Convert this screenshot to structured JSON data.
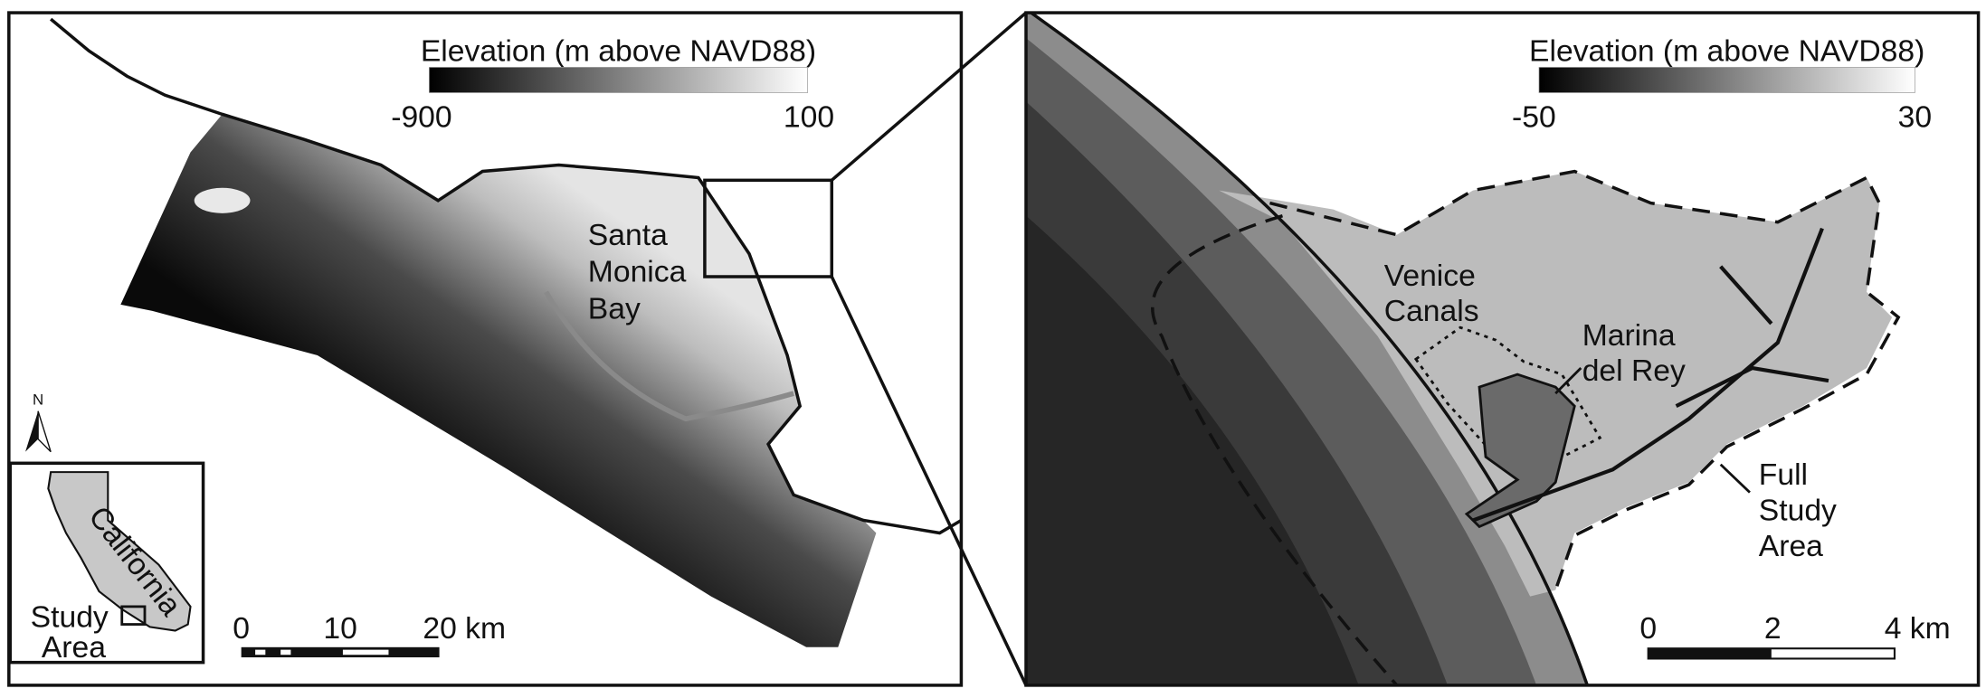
{
  "left_panel": {
    "legend": {
      "title": "Elevation (m above NAVD88)",
      "min": -900,
      "max": 100
    },
    "scale_bar": [
      "0",
      "10",
      "20 km"
    ],
    "place_label": [
      "Santa",
      "Monica",
      "Bay"
    ],
    "north_arrow": "N",
    "inset": {
      "state": "California",
      "study_area": [
        "Study",
        "Area"
      ]
    }
  },
  "right_panel": {
    "legend": {
      "title": "Elevation (m above NAVD88)",
      "min": -50,
      "max": 30
    },
    "scale_bar": [
      "0",
      "2",
      "4 km"
    ],
    "labels": {
      "venice": [
        "Venice",
        "Canals"
      ],
      "marina": [
        "Marina",
        "del Rey"
      ],
      "study_area": [
        "Full",
        "Study",
        "Area"
      ]
    }
  }
}
